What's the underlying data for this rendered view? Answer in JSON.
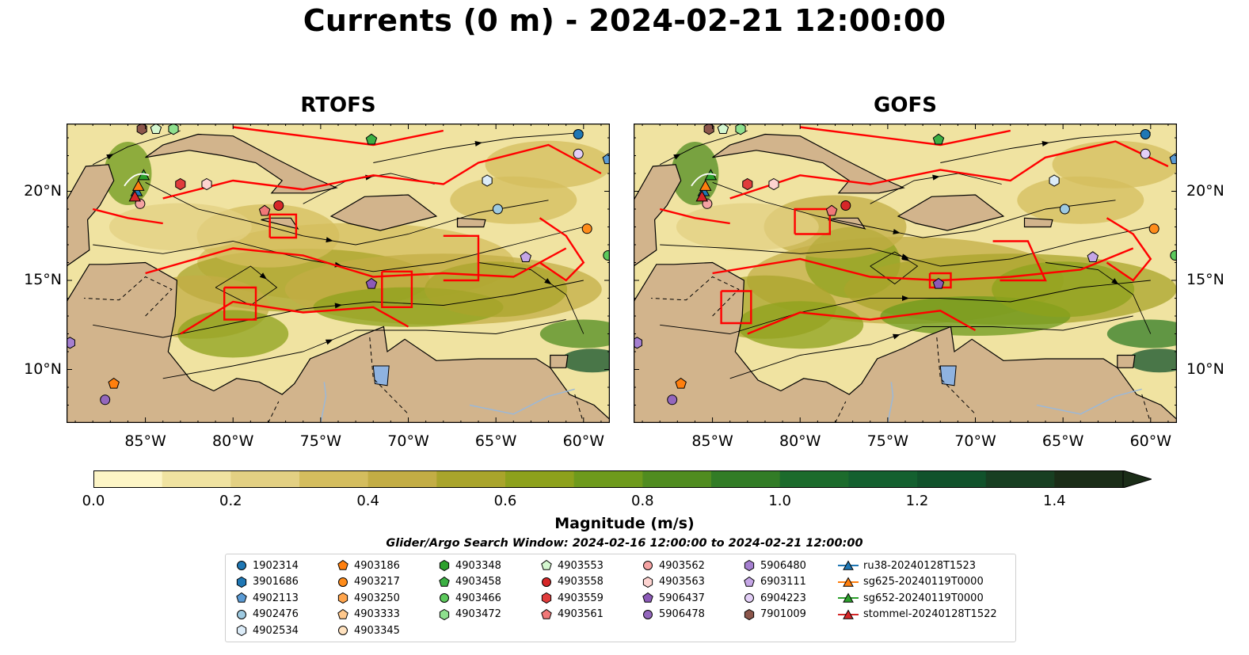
{
  "title": "Currents (0 m) - 2024-02-21 12:00:00",
  "panels": [
    {
      "title": "RTOFS",
      "key": "left"
    },
    {
      "title": "GOFS",
      "key": "right"
    }
  ],
  "axes": {
    "lon_ticks": [
      "85°W",
      "80°W",
      "75°W",
      "70°W",
      "65°W",
      "60°W"
    ],
    "lat_ticks": [
      "20°N",
      "15°N",
      "10°N"
    ],
    "lon_range": [
      -89.5,
      -58.5
    ],
    "lat_range": [
      7.0,
      23.8
    ]
  },
  "colorbar": {
    "label": "Magnitude (m/s)",
    "ticks": [
      "0.0",
      "0.2",
      "0.4",
      "0.6",
      "0.8",
      "1.0",
      "1.2",
      "1.4"
    ],
    "range": [
      0,
      1.5
    ],
    "extend": "max",
    "colors": [
      "#fdf5c6",
      "#f0e3a1",
      "#e3d083",
      "#d4bd5e",
      "#c3ad45",
      "#a9a42b",
      "#8da11c",
      "#6e9a1c",
      "#508c20",
      "#327c26",
      "#1c6b2c",
      "#14602f",
      "#11522b",
      "#183f22",
      "#1b2d18"
    ]
  },
  "search_window": "Glider/Argo Search Window: 2024-02-16 12:00:00 to 2024-02-21 12:00:00",
  "chart_data": {
    "type": "map",
    "variable": "surface current magnitude (m/s) with streamlines",
    "models": [
      "RTOFS",
      "GOFS"
    ],
    "land_color": "#d2b48c",
    "track_color": "#ff0000",
    "legend": [
      {
        "id": "1902314",
        "marker": "circle",
        "color": "#1f77b4"
      },
      {
        "id": "3901686",
        "marker": "hexagon",
        "color": "#1f77b4"
      },
      {
        "id": "4902113",
        "marker": "pentagon",
        "color": "#5b9bd5"
      },
      {
        "id": "4902476",
        "marker": "circle",
        "color": "#9ecae1"
      },
      {
        "id": "4902534",
        "marker": "hexagon",
        "color": "#dcecf8"
      },
      {
        "id": "4903186",
        "marker": "pentagon",
        "color": "#ff7f0e"
      },
      {
        "id": "4903217",
        "marker": "circle",
        "color": "#ff8c1a"
      },
      {
        "id": "4903250",
        "marker": "hexagon",
        "color": "#ffa54d"
      },
      {
        "id": "4903333",
        "marker": "pentagon",
        "color": "#ffc88c"
      },
      {
        "id": "4903345",
        "marker": "circle",
        "color": "#ffe2bf"
      },
      {
        "id": "4903348",
        "marker": "hexagon",
        "color": "#2ca02c"
      },
      {
        "id": "4903458",
        "marker": "pentagon",
        "color": "#3cb043"
      },
      {
        "id": "4903466",
        "marker": "circle",
        "color": "#5cc95c"
      },
      {
        "id": "4903472",
        "marker": "hexagon",
        "color": "#8ee08e"
      },
      {
        "id": "4903553",
        "marker": "pentagon",
        "color": "#d4f7d0"
      },
      {
        "id": "4903558",
        "marker": "circle",
        "color": "#d62728"
      },
      {
        "id": "4903559",
        "marker": "hexagon",
        "color": "#e03c3c"
      },
      {
        "id": "4903561",
        "marker": "pentagon",
        "color": "#f07878"
      },
      {
        "id": "4903562",
        "marker": "circle",
        "color": "#f5a3a3"
      },
      {
        "id": "4903563",
        "marker": "hexagon",
        "color": "#fdd3d0"
      },
      {
        "id": "5906437",
        "marker": "pentagon",
        "color": "#8c5ab8"
      },
      {
        "id": "5906478",
        "marker": "circle",
        "color": "#9467bd"
      },
      {
        "id": "5906480",
        "marker": "hexagon",
        "color": "#a57fd0"
      },
      {
        "id": "6903111",
        "marker": "pentagon",
        "color": "#c5a6e6"
      },
      {
        "id": "6904223",
        "marker": "circle",
        "color": "#e3cff7"
      },
      {
        "id": "7901009",
        "marker": "hexagon",
        "color": "#8c564b"
      },
      {
        "id": "ru38-20240128T1523",
        "marker": "triangle-line",
        "color": "#1f77b4"
      },
      {
        "id": "sg625-20240119T0000",
        "marker": "triangle-line",
        "color": "#ff7f0e"
      },
      {
        "id": "sg652-20240119T0000",
        "marker": "triangle-line",
        "color": "#2ca02c"
      },
      {
        "id": "stommel-20240128T1522",
        "marker": "triangle-line",
        "color": "#d62728"
      }
    ],
    "platforms_plotted": [
      {
        "id": "1902314",
        "lon": -60.3,
        "lat": 23.2
      },
      {
        "id": "6904223",
        "lon": -60.3,
        "lat": 22.1
      },
      {
        "id": "4902113",
        "lon": -58.6,
        "lat": 21.8
      },
      {
        "id": "4902534",
        "lon": -65.5,
        "lat": 20.6
      },
      {
        "id": "4903458",
        "lon": -72.1,
        "lat": 22.9
      },
      {
        "id": "7901009",
        "lon": -85.2,
        "lat": 23.5
      },
      {
        "id": "4903553",
        "lon": -84.4,
        "lat": 23.5
      },
      {
        "id": "4903472",
        "lon": -83.4,
        "lat": 23.5
      },
      {
        "id": "4903559",
        "lon": -83.0,
        "lat": 20.4
      },
      {
        "id": "4903563",
        "lon": -81.5,
        "lat": 20.4
      },
      {
        "id": "4903562",
        "lon": -85.3,
        "lat": 19.3
      },
      {
        "id": "4903558",
        "lon": -77.4,
        "lat": 19.2
      },
      {
        "id": "4903561",
        "lon": -78.2,
        "lat": 18.9
      },
      {
        "id": "4903217",
        "lon": -59.8,
        "lat": 17.9
      },
      {
        "id": "4902476",
        "lon": -64.9,
        "lat": 19.0
      },
      {
        "id": "6903111",
        "lon": -63.3,
        "lat": 16.3
      },
      {
        "id": "5906437",
        "lon": -72.1,
        "lat": 14.8
      },
      {
        "id": "5906480",
        "lon": -89.3,
        "lat": 11.5
      },
      {
        "id": "5906478",
        "lon": -87.3,
        "lat": 8.3
      },
      {
        "id": "4903186",
        "lon": -86.8,
        "lat": 9.2
      },
      {
        "id": "4903466",
        "lon": -58.6,
        "lat": 16.4
      }
    ]
  }
}
